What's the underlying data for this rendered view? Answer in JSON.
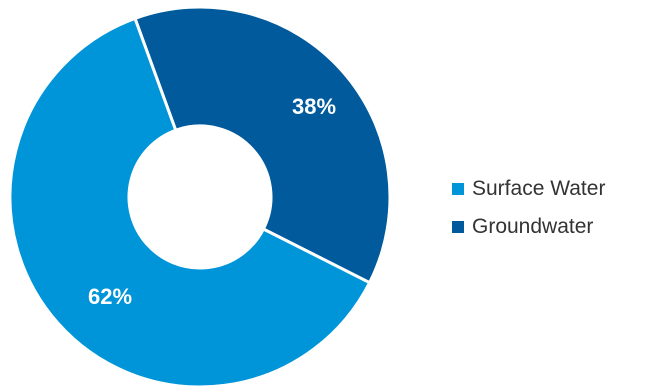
{
  "chart_data": {
    "type": "pie",
    "variant": "donut",
    "title": "",
    "slices": [
      {
        "name": "Surface Water",
        "value": 62,
        "label": "62%",
        "color": "#0095d9"
      },
      {
        "name": "Groundwater",
        "value": 38,
        "label": "38%",
        "color": "#005a9c"
      }
    ],
    "legend": {
      "placement": "right",
      "items": [
        "Surface Water",
        "Groundwater"
      ]
    }
  }
}
